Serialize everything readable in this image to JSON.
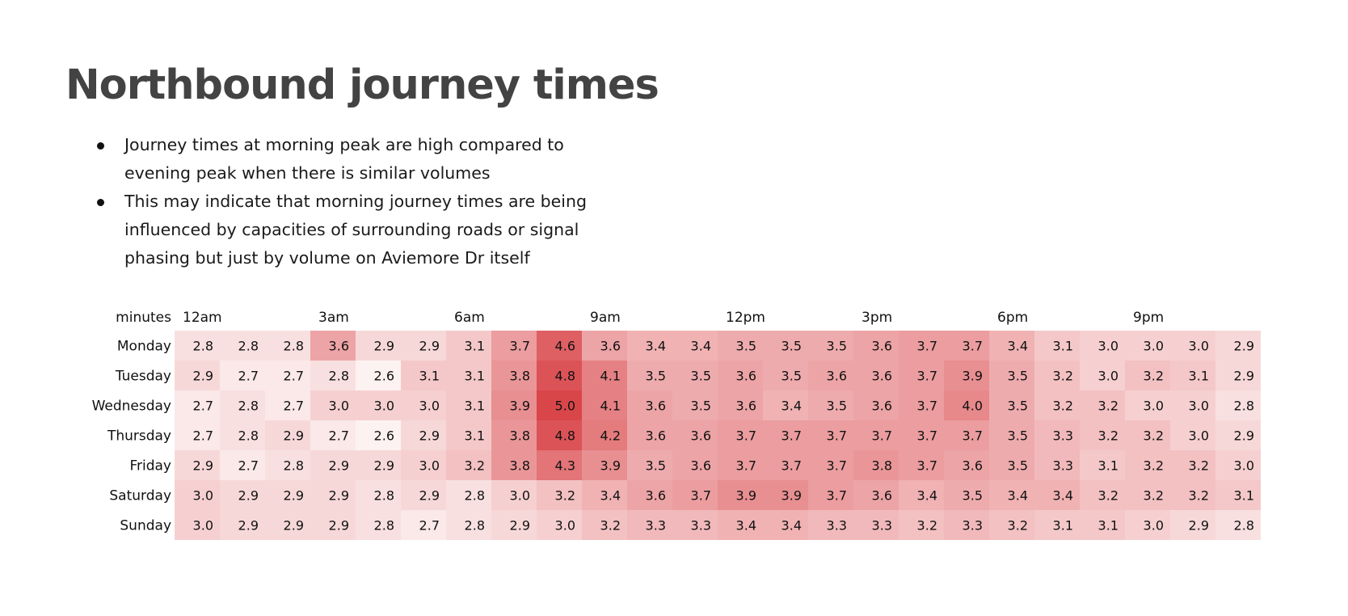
{
  "title": "Northbound journey times",
  "bullets": [
    "Journey times at morning peak are high compared to evening peak when there is similar volumes",
    "This may indicate that morning journey times are being influenced by capacities of surrounding roads or signal phasing but just by volume on Aviemore Dr itself"
  ],
  "chart_data": {
    "type": "heatmap",
    "unit_label": "minutes",
    "x_tick_labels": [
      {
        "hour": 0,
        "label": "12am"
      },
      {
        "hour": 3,
        "label": "3am"
      },
      {
        "hour": 6,
        "label": "6am"
      },
      {
        "hour": 9,
        "label": "9am"
      },
      {
        "hour": 12,
        "label": "12pm"
      },
      {
        "hour": 15,
        "label": "3pm"
      },
      {
        "hour": 18,
        "label": "6pm"
      },
      {
        "hour": 21,
        "label": "9pm"
      }
    ],
    "hours": [
      0,
      1,
      2,
      3,
      4,
      5,
      6,
      7,
      8,
      9,
      10,
      11,
      12,
      13,
      14,
      15,
      16,
      17,
      18,
      19,
      20,
      21,
      22,
      23
    ],
    "rows": [
      {
        "day": "Monday",
        "values": [
          2.8,
          2.8,
          2.8,
          3.6,
          2.9,
          2.9,
          3.1,
          3.7,
          4.6,
          3.6,
          3.4,
          3.4,
          3.5,
          3.5,
          3.5,
          3.6,
          3.7,
          3.7,
          3.4,
          3.1,
          3.0,
          3.0,
          3.0,
          2.9
        ]
      },
      {
        "day": "Tuesday",
        "values": [
          2.9,
          2.7,
          2.7,
          2.8,
          2.6,
          3.1,
          3.1,
          3.8,
          4.8,
          4.1,
          3.5,
          3.5,
          3.6,
          3.5,
          3.6,
          3.6,
          3.7,
          3.9,
          3.5,
          3.2,
          3.0,
          3.2,
          3.1,
          2.9
        ]
      },
      {
        "day": "Wednesday",
        "values": [
          2.7,
          2.8,
          2.7,
          3.0,
          3.0,
          3.0,
          3.1,
          3.9,
          5.0,
          4.1,
          3.6,
          3.5,
          3.6,
          3.4,
          3.5,
          3.6,
          3.7,
          4.0,
          3.5,
          3.2,
          3.2,
          3.0,
          3.0,
          2.8
        ]
      },
      {
        "day": "Thursday",
        "values": [
          2.7,
          2.8,
          2.9,
          2.7,
          2.6,
          2.9,
          3.1,
          3.8,
          4.8,
          4.2,
          3.6,
          3.6,
          3.7,
          3.7,
          3.7,
          3.7,
          3.7,
          3.7,
          3.5,
          3.3,
          3.2,
          3.2,
          3.0,
          2.9
        ]
      },
      {
        "day": "Friday",
        "values": [
          2.9,
          2.7,
          2.8,
          2.9,
          2.9,
          3.0,
          3.2,
          3.8,
          4.3,
          3.9,
          3.5,
          3.6,
          3.7,
          3.7,
          3.7,
          3.8,
          3.7,
          3.6,
          3.5,
          3.3,
          3.1,
          3.2,
          3.2,
          3.0
        ]
      },
      {
        "day": "Saturday",
        "values": [
          3.0,
          2.9,
          2.9,
          2.9,
          2.8,
          2.9,
          2.8,
          3.0,
          3.2,
          3.4,
          3.6,
          3.7,
          3.9,
          3.9,
          3.7,
          3.6,
          3.4,
          3.5,
          3.4,
          3.4,
          3.2,
          3.2,
          3.2,
          3.1
        ]
      },
      {
        "day": "Sunday",
        "values": [
          3.0,
          2.9,
          2.9,
          2.9,
          2.8,
          2.7,
          2.8,
          2.9,
          3.0,
          3.2,
          3.3,
          3.3,
          3.4,
          3.4,
          3.3,
          3.3,
          3.2,
          3.3,
          3.2,
          3.1,
          3.1,
          3.0,
          2.9,
          2.8
        ]
      }
    ],
    "value_range": [
      2.6,
      5.0
    ],
    "color_low": "#fdf2f2",
    "color_high": "#d9464a"
  }
}
